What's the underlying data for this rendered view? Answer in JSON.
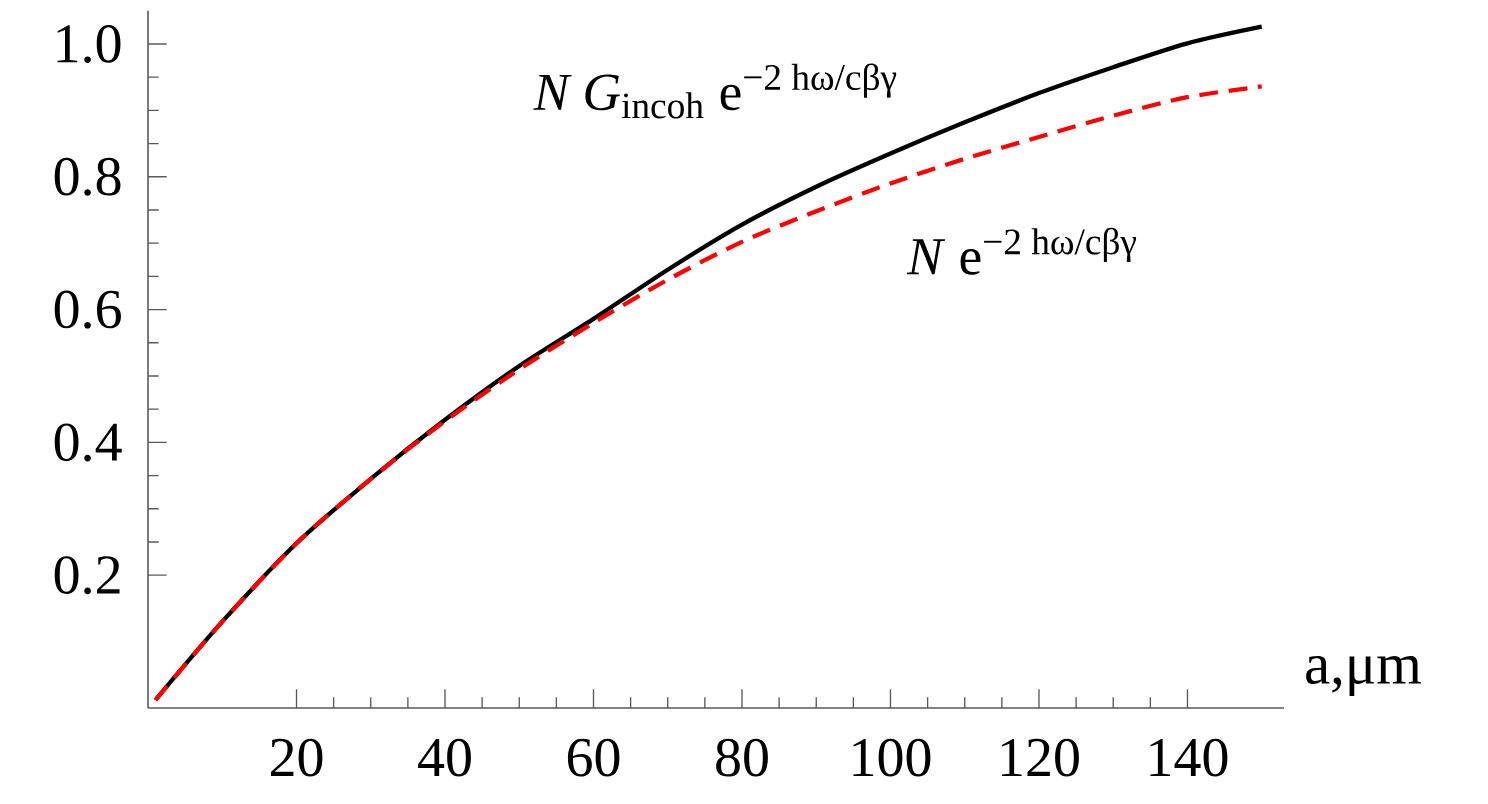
{
  "chart_data": {
    "type": "line",
    "xlabel": "a,μm",
    "x": [
      1,
      10,
      20,
      30,
      40,
      50,
      60,
      70,
      80,
      90,
      100,
      110,
      120,
      130,
      140,
      150
    ],
    "series": [
      {
        "color": "#000000",
        "line_style": "solid",
        "values": [
          0.012,
          0.13,
          0.248,
          0.345,
          0.434,
          0.515,
          0.586,
          0.66,
          0.728,
          0.785,
          0.835,
          0.882,
          0.926,
          0.965,
          1.001,
          1.026
        ]
      },
      {
        "color": "#ff0000",
        "line_style": "dashed",
        "values": [
          0.012,
          0.13,
          0.248,
          0.345,
          0.432,
          0.51,
          0.58,
          0.645,
          0.702,
          0.748,
          0.79,
          0.827,
          0.86,
          0.892,
          0.92,
          0.936
        ]
      }
    ],
    "xlim": [
      0,
      153
    ],
    "ylim": [
      0,
      1.05
    ],
    "xticks": [
      20,
      40,
      60,
      80,
      100,
      120,
      140
    ],
    "yticks": [
      0.2,
      0.4,
      0.6,
      0.8,
      {
        "value": 1.0,
        "label": "1.0"
      }
    ],
    "grid": false,
    "marker": "none",
    "annotations": [
      "*N G*$_{incoh}$ e$^{−2 hω/cβγ}$",
      "*N* e$^{−2 hω/cβγ}$"
    ]
  }
}
